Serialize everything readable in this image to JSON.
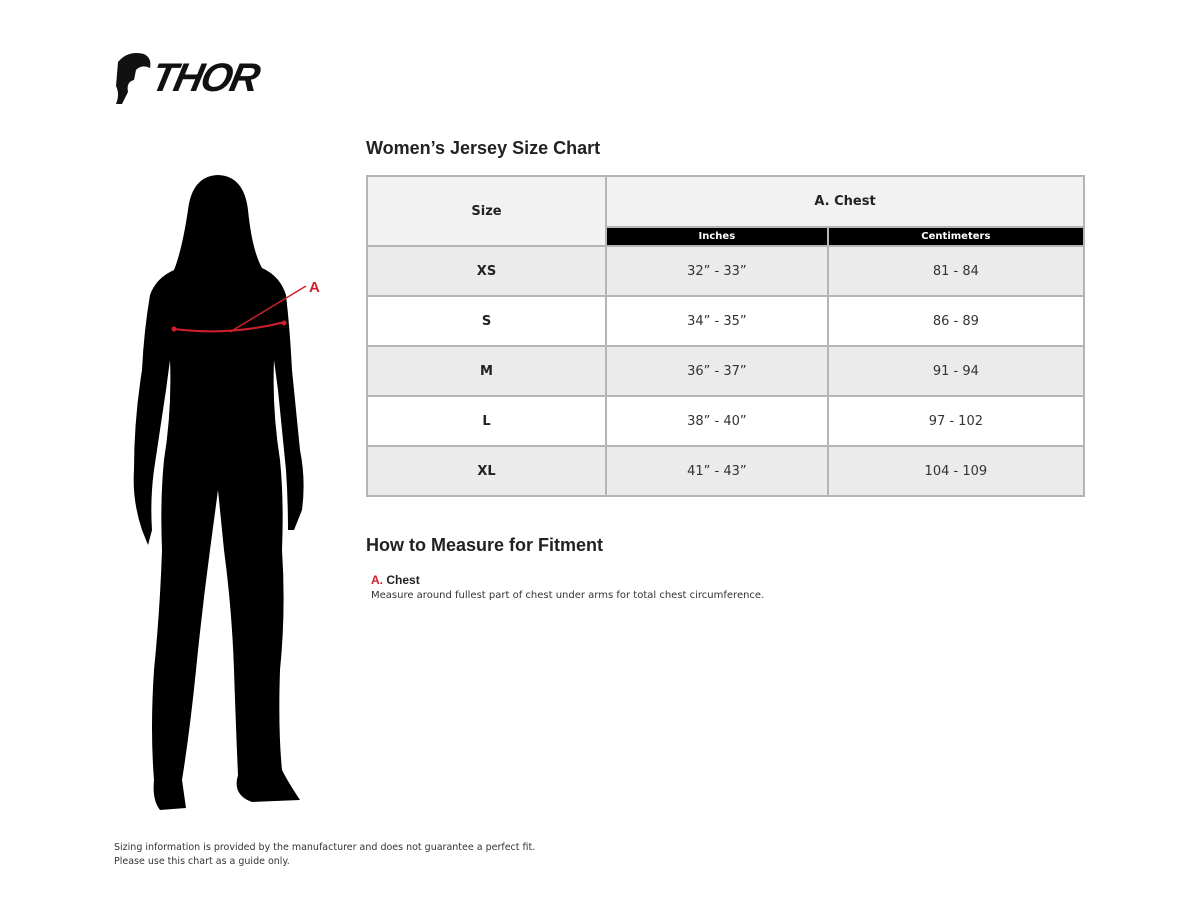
{
  "brand": {
    "logo_text": "THOR"
  },
  "chart": {
    "title": "Women’s Jersey Size Chart",
    "headers": {
      "size": "Size",
      "group": "A. Chest",
      "inches": "Inches",
      "centimeters": "Centimeters"
    },
    "rows": [
      {
        "size": "XS",
        "inches": "32” - 33”",
        "cm": "81 - 84"
      },
      {
        "size": "S",
        "inches": "34” - 35”",
        "cm": "86 - 89"
      },
      {
        "size": "M",
        "inches": "36” - 37”",
        "cm": "91 - 94"
      },
      {
        "size": "L",
        "inches": "38” - 40”",
        "cm": "97 - 102"
      },
      {
        "size": "XL",
        "inches": "41” - 43”",
        "cm": "104 - 109"
      }
    ]
  },
  "figure": {
    "marker": "A",
    "accent": "#d0202a"
  },
  "measure": {
    "title": "How to Measure for Fitment",
    "items": [
      {
        "letter": "A.",
        "name": "Chest",
        "desc": "Measure around fullest part of chest under arms for total chest circumference."
      }
    ]
  },
  "footer": {
    "line1": "Sizing information is provided by the manufacturer and does not guarantee a perfect fit.",
    "line2": "Please use this chart as a guide only."
  }
}
